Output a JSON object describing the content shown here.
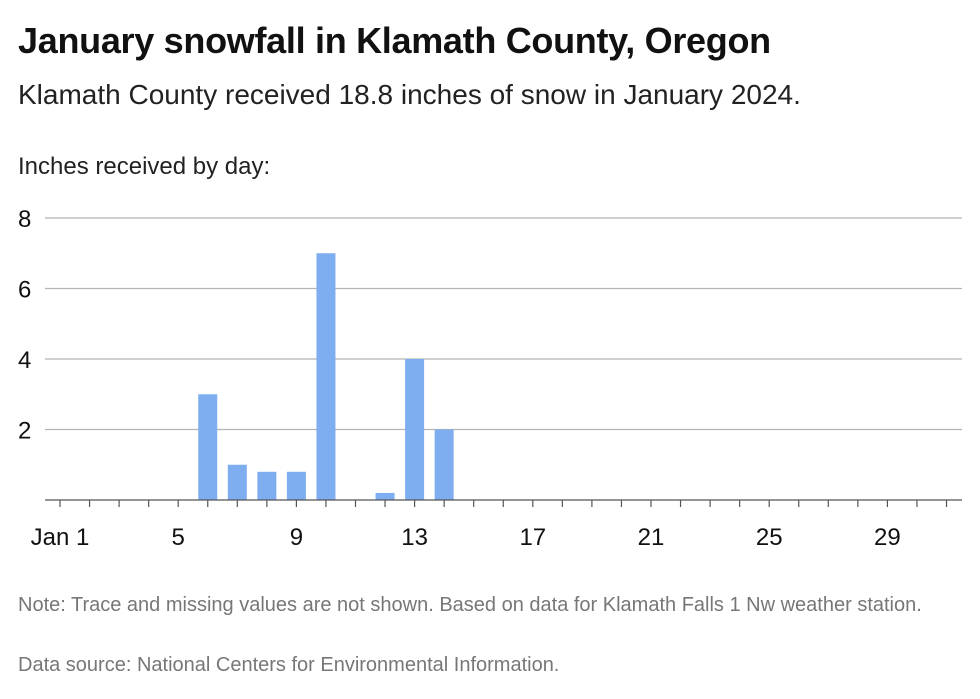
{
  "title": "January snowfall in Klamath County, Oregon",
  "subtitle": "Klamath County received 18.8 inches of snow in January 2024.",
  "note": "Note: Trace and missing values are not shown. Based on data for Klamath Falls 1 Nw weather station.",
  "source": "Data source: National Centers for Environmental Information.",
  "colors": {
    "bar": "#7eaef0",
    "grid": "#b5b5b5",
    "axis": "#555555"
  },
  "chart_data": {
    "type": "bar",
    "ylabel": "Inches received by day:",
    "xlabel": "",
    "ylim": [
      0,
      8
    ],
    "yticks": [
      2,
      4,
      6,
      8
    ],
    "x_tick_labels": [
      {
        "day": 1,
        "label": "Jan 1"
      },
      {
        "day": 5,
        "label": "5"
      },
      {
        "day": 9,
        "label": "9"
      },
      {
        "day": 13,
        "label": "13"
      },
      {
        "day": 17,
        "label": "17"
      },
      {
        "day": 21,
        "label": "21"
      },
      {
        "day": 25,
        "label": "25"
      },
      {
        "day": 29,
        "label": "29"
      }
    ],
    "days": [
      1,
      2,
      3,
      4,
      5,
      6,
      7,
      8,
      9,
      10,
      11,
      12,
      13,
      14,
      15,
      16,
      17,
      18,
      19,
      20,
      21,
      22,
      23,
      24,
      25,
      26,
      27,
      28,
      29,
      30,
      31
    ],
    "values": [
      0,
      0,
      0,
      0,
      0,
      3,
      1,
      0.8,
      0.8,
      7,
      0,
      0.2,
      4,
      2,
      0,
      0,
      0,
      0,
      0,
      0,
      0,
      0,
      0,
      0,
      0,
      0,
      0,
      0,
      0,
      0,
      0
    ],
    "grid": true
  }
}
